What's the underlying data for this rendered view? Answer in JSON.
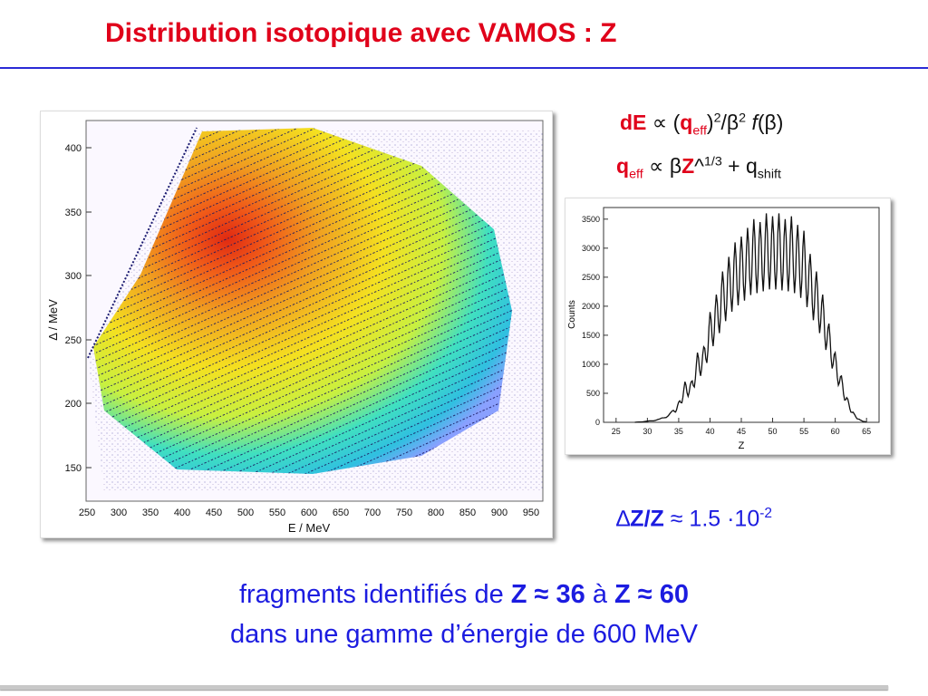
{
  "slide": {
    "title": "Distribution isotopique avec VAMOS : Z"
  },
  "left_plot": {
    "x_label": "E / MeV",
    "y_label": "Δ / MeV",
    "x_ticks": [
      "250",
      "300",
      "350",
      "400",
      "450",
      "500",
      "550",
      "600",
      "650",
      "700",
      "750",
      "800",
      "850",
      "900",
      "950"
    ],
    "y_ticks": [
      "150",
      "200",
      "250",
      "300",
      "350",
      "400"
    ]
  },
  "formulas": {
    "line1": {
      "lhs": "dE",
      "prop": " ∝ (",
      "q": "q",
      "eff": "eff",
      "rest": ")",
      "sq1": "2",
      "beta": "/β",
      "sq2": "2",
      "f": " f",
      "fbeta": "(β)"
    },
    "line2": {
      "q": "q",
      "eff": "eff",
      "prop": " ∝ β",
      "z": "Z",
      "caret": "^",
      "exp": "1/3",
      "plus": " + q",
      "shift": "shift"
    }
  },
  "resolution": {
    "delta": "∆",
    "zz": "Z/Z",
    "approx": " ≈ 1.5 ·10",
    "exp": "-2"
  },
  "conclusion": {
    "line1_a": "fragments identifiés de ",
    "line1_b": "Z ≈ 36",
    "line1_c": " à ",
    "line1_d": "Z ≈ 60",
    "line2": "dans une gamme d’énergie de 600 MeV"
  },
  "chart_data": [
    {
      "type": "heatmap",
      "title": "",
      "xlabel": "E / MeV",
      "ylabel": "Δ / MeV",
      "xlim": [
        250,
        970
      ],
      "ylim": [
        125,
        420
      ],
      "note_colors": [
        "#2020d0",
        "#20c8d0",
        "#40e0a0",
        "#f0f020",
        "#f0a020",
        "#e02020"
      ]
    },
    {
      "type": "line",
      "title": "",
      "xlabel": "Z",
      "ylabel": "Counts",
      "xlim": [
        23,
        67
      ],
      "ylim": [
        0,
        3700
      ],
      "x_ticks": [
        25,
        30,
        35,
        40,
        45,
        50,
        55,
        60,
        65
      ],
      "y_ticks": [
        0,
        500,
        1000,
        1500,
        2000,
        2500,
        3000,
        3500
      ],
      "series": [
        {
          "x": [
            28,
            30,
            32,
            34,
            35,
            36,
            37,
            38,
            39,
            40,
            41,
            42,
            43,
            44,
            45,
            46,
            47,
            48,
            49,
            50,
            51,
            52,
            53,
            54,
            55,
            56,
            57,
            58,
            59,
            60,
            61,
            62,
            63,
            64,
            65
          ],
          "values": [
            0,
            20,
            60,
            200,
            350,
            700,
            700,
            1200,
            1300,
            1900,
            2200,
            2600,
            2850,
            3100,
            3200,
            3350,
            3500,
            3450,
            3600,
            3550,
            3600,
            3500,
            3550,
            3400,
            3300,
            2900,
            2600,
            2200,
            1700,
            1200,
            800,
            400,
            150,
            40,
            5
          ]
        }
      ]
    }
  ]
}
